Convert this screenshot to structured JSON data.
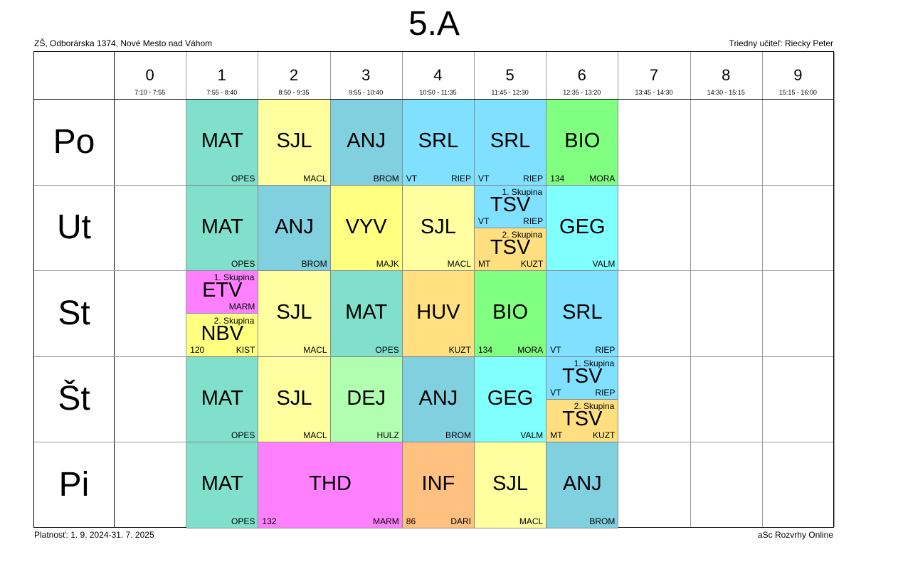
{
  "title": "5.A",
  "school": "ZŠ, Odborárska 1374, Nové Mesto nad Váhom",
  "teacher": "Triedny učiteľ: Riecky Peter",
  "validity": "Platnosť: 1. 9. 2024-31. 7. 2025",
  "credit": "aSc Rozvrhy Online",
  "periods": [
    {
      "num": "0",
      "time": "7:10 - 7:55"
    },
    {
      "num": "1",
      "time": "7:55 - 8:40"
    },
    {
      "num": "2",
      "time": "8:50 - 9:35"
    },
    {
      "num": "3",
      "time": "9:55 - 10:40"
    },
    {
      "num": "4",
      "time": "10:50 - 11:35"
    },
    {
      "num": "5",
      "time": "11:45 - 12:30"
    },
    {
      "num": "6",
      "time": "12:35 - 13:20"
    },
    {
      "num": "7",
      "time": "13:45 - 14:30"
    },
    {
      "num": "8",
      "time": "14:30 - 15:15"
    },
    {
      "num": "9",
      "time": "15:15 - 16:00"
    }
  ],
  "days": [
    "Po",
    "Ut",
    "St",
    "Št",
    "Pi"
  ],
  "colors": {
    "MAT": "#80e0cc",
    "SJL": "#ffff9f",
    "ANJ": "#80d0e0",
    "SRL": "#80e0ff",
    "BIO": "#80ff80",
    "TSV1": "#80e0ff",
    "TSV2": "#ffdf80",
    "GEG": "#80ffff",
    "VYV": "#ffff80",
    "ETV": "#ff80ff",
    "NBV": "#ffff80",
    "HUV": "#ffdf80",
    "DEJ": "#b0ffb0",
    "THD": "#ff80ff",
    "INF": "#ffc080"
  },
  "lessons": [
    {
      "day": 0,
      "period": 1,
      "span": 1,
      "subject": "MAT",
      "teacher": "OPES",
      "room": "",
      "color": "MAT"
    },
    {
      "day": 0,
      "period": 2,
      "span": 1,
      "subject": "SJL",
      "teacher": "MACL",
      "room": "",
      "color": "SJL"
    },
    {
      "day": 0,
      "period": 3,
      "span": 1,
      "subject": "ANJ",
      "teacher": "BROM",
      "room": "",
      "color": "ANJ"
    },
    {
      "day": 0,
      "period": 4,
      "span": 1,
      "subject": "SRL",
      "teacher": "RIEP",
      "room": "VT",
      "color": "SRL"
    },
    {
      "day": 0,
      "period": 5,
      "span": 1,
      "subject": "SRL",
      "teacher": "RIEP",
      "room": "VT",
      "color": "SRL"
    },
    {
      "day": 0,
      "period": 6,
      "span": 1,
      "subject": "BIO",
      "teacher": "MORA",
      "room": "134",
      "color": "BIO"
    },
    {
      "day": 1,
      "period": 1,
      "span": 1,
      "subject": "MAT",
      "teacher": "OPES",
      "room": "",
      "color": "MAT"
    },
    {
      "day": 1,
      "period": 2,
      "span": 1,
      "subject": "ANJ",
      "teacher": "BROM",
      "room": "",
      "color": "ANJ"
    },
    {
      "day": 1,
      "period": 3,
      "span": 1,
      "subject": "VYV",
      "teacher": "MAJK",
      "room": "",
      "color": "VYV"
    },
    {
      "day": 1,
      "period": 4,
      "span": 1,
      "subject": "SJL",
      "teacher": "MACL",
      "room": "",
      "color": "SJL"
    },
    {
      "day": 1,
      "period": 5,
      "half": "top",
      "group": "1. Skupina",
      "subject": "TSV",
      "teacher": "RIEP",
      "room": "VT",
      "color": "TSV1"
    },
    {
      "day": 1,
      "period": 5,
      "half": "bottom",
      "group": "2. Skupina",
      "subject": "TSV",
      "teacher": "KUZT",
      "room": "MT",
      "color": "TSV2"
    },
    {
      "day": 1,
      "period": 6,
      "span": 1,
      "subject": "GEG",
      "teacher": "VALM",
      "room": "",
      "color": "GEG"
    },
    {
      "day": 2,
      "period": 1,
      "half": "top",
      "group": "1. Skupina",
      "subject": "ETV",
      "teacher": "MARM",
      "room": "",
      "color": "ETV"
    },
    {
      "day": 2,
      "period": 1,
      "half": "bottom",
      "group": "2. Skupina",
      "subject": "NBV",
      "teacher": "KIST",
      "room": "120",
      "color": "NBV"
    },
    {
      "day": 2,
      "period": 2,
      "span": 1,
      "subject": "SJL",
      "teacher": "MACL",
      "room": "",
      "color": "SJL"
    },
    {
      "day": 2,
      "period": 3,
      "span": 1,
      "subject": "MAT",
      "teacher": "OPES",
      "room": "",
      "color": "MAT"
    },
    {
      "day": 2,
      "period": 4,
      "span": 1,
      "subject": "HUV",
      "teacher": "KUZT",
      "room": "",
      "color": "HUV"
    },
    {
      "day": 2,
      "period": 5,
      "span": 1,
      "subject": "BIO",
      "teacher": "MORA",
      "room": "134",
      "color": "BIO"
    },
    {
      "day": 2,
      "period": 6,
      "span": 1,
      "subject": "SRL",
      "teacher": "RIEP",
      "room": "VT",
      "color": "SRL"
    },
    {
      "day": 3,
      "period": 1,
      "span": 1,
      "subject": "MAT",
      "teacher": "OPES",
      "room": "",
      "color": "MAT"
    },
    {
      "day": 3,
      "period": 2,
      "span": 1,
      "subject": "SJL",
      "teacher": "MACL",
      "room": "",
      "color": "SJL"
    },
    {
      "day": 3,
      "period": 3,
      "span": 1,
      "subject": "DEJ",
      "teacher": "HULZ",
      "room": "",
      "color": "DEJ"
    },
    {
      "day": 3,
      "period": 4,
      "span": 1,
      "subject": "ANJ",
      "teacher": "BROM",
      "room": "",
      "color": "ANJ"
    },
    {
      "day": 3,
      "period": 5,
      "span": 1,
      "subject": "GEG",
      "teacher": "VALM",
      "room": "",
      "color": "GEG"
    },
    {
      "day": 3,
      "period": 6,
      "half": "top",
      "group": "1. Skupina",
      "subject": "TSV",
      "teacher": "RIEP",
      "room": "VT",
      "color": "TSV1"
    },
    {
      "day": 3,
      "period": 6,
      "half": "bottom",
      "group": "2. Skupina",
      "subject": "TSV",
      "teacher": "KUZT",
      "room": "MT",
      "color": "TSV2"
    },
    {
      "day": 4,
      "period": 1,
      "span": 1,
      "subject": "MAT",
      "teacher": "OPES",
      "room": "",
      "color": "MAT"
    },
    {
      "day": 4,
      "period": 2,
      "span": 2,
      "subject": "THD",
      "teacher": "MARM",
      "room": "132",
      "color": "THD"
    },
    {
      "day": 4,
      "period": 4,
      "span": 1,
      "subject": "INF",
      "teacher": "DARI",
      "room": "86",
      "color": "INF"
    },
    {
      "day": 4,
      "period": 5,
      "span": 1,
      "subject": "SJL",
      "teacher": "MACL",
      "room": "",
      "color": "SJL"
    },
    {
      "day": 4,
      "period": 6,
      "span": 1,
      "subject": "ANJ",
      "teacher": "BROM",
      "room": "",
      "color": "ANJ"
    }
  ]
}
